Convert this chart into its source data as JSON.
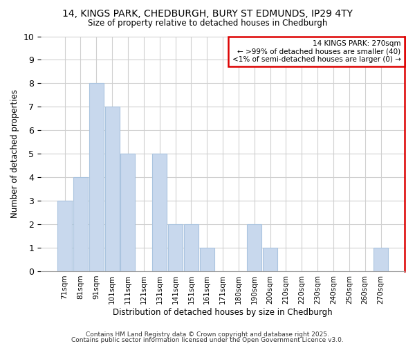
{
  "title1": "14, KINGS PARK, CHEDBURGH, BURY ST EDMUNDS, IP29 4TY",
  "title2": "Size of property relative to detached houses in Chedburgh",
  "xlabel": "Distribution of detached houses by size in Chedburgh",
  "ylabel": "Number of detached properties",
  "categories": [
    "71sqm",
    "81sqm",
    "91sqm",
    "101sqm",
    "111sqm",
    "121sqm",
    "131sqm",
    "141sqm",
    "151sqm",
    "161sqm",
    "171sqm",
    "180sqm",
    "190sqm",
    "200sqm",
    "210sqm",
    "220sqm",
    "230sqm",
    "240sqm",
    "250sqm",
    "260sqm",
    "270sqm"
  ],
  "values": [
    3,
    4,
    8,
    7,
    5,
    0,
    5,
    2,
    2,
    1,
    0,
    0,
    2,
    1,
    0,
    0,
    0,
    0,
    0,
    0,
    1
  ],
  "bar_color": "#c8d8ed",
  "bar_edgecolor": "#aac4df",
  "annotation_text": "14 KINGS PARK: 270sqm\n← >99% of detached houses are smaller (40)\n<1% of semi-detached houses are larger (0) →",
  "ylim": [
    0,
    10
  ],
  "yticks": [
    0,
    1,
    2,
    3,
    4,
    5,
    6,
    7,
    8,
    9,
    10
  ],
  "footnote1": "Contains HM Land Registry data © Crown copyright and database right 2025.",
  "footnote2": "Contains public sector information licensed under the Open Government Licence v3.0.",
  "background_color": "#ffffff",
  "grid_color": "#d0d0d0",
  "red_color": "#dd0000"
}
